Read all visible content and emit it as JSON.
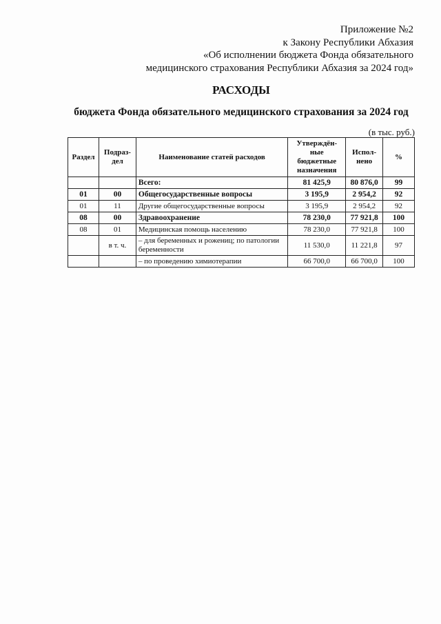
{
  "header": {
    "lines": [
      "Приложение №2",
      "к Закону Республики Абхазия",
      "«Об исполнении бюджета Фонда обязательного",
      "медицинского страхования Республики Абхазия за 2024 год»"
    ]
  },
  "title": "РАСХОДЫ",
  "subtitle": "бюджета Фонда обязательного медицинского страхования за 2024 год",
  "units": "(в тыс. руб.)",
  "table": {
    "columns": [
      "Раздел",
      "Подраз-дел",
      "Наименование статей расходов",
      "Утверждён-ные бюджетные назначения",
      "Испол-нено",
      "%"
    ],
    "rows": [
      {
        "razdel": "",
        "podrazdel": "",
        "name": "Всего:",
        "approved": "81 425,9",
        "executed": "80 876,0",
        "percent": "99",
        "bold": true
      },
      {
        "razdel": "01",
        "podrazdel": "00",
        "name": "Общегосударственные вопросы",
        "approved": "3 195,9",
        "executed": "2 954,2",
        "percent": "92",
        "bold": true
      },
      {
        "razdel": "01",
        "podrazdel": "11",
        "name": "Другие общегосударственные вопросы",
        "approved": "3 195,9",
        "executed": "2 954,2",
        "percent": "92",
        "bold": false
      },
      {
        "razdel": "08",
        "podrazdel": "00",
        "name": "Здравоохранение",
        "approved": "78 230,0",
        "executed": "77 921,8",
        "percent": "100",
        "bold": true
      },
      {
        "razdel": "08",
        "podrazdel": "01",
        "name": "Медицинская помощь населению",
        "approved": "78 230,0",
        "executed": "77 921,8",
        "percent": "100",
        "bold": false
      },
      {
        "razdel": "",
        "podrazdel": "в т. ч.",
        "name": "– для беременных и рожениц; по патологии беременности",
        "approved": "11 530,0",
        "executed": "11 221,8",
        "percent": "97",
        "bold": false
      },
      {
        "razdel": "",
        "podrazdel": "",
        "name": "– по проведению химиотерапии",
        "approved": "66 700,0",
        "executed": "66 700,0",
        "percent": "100",
        "bold": false
      }
    ]
  }
}
